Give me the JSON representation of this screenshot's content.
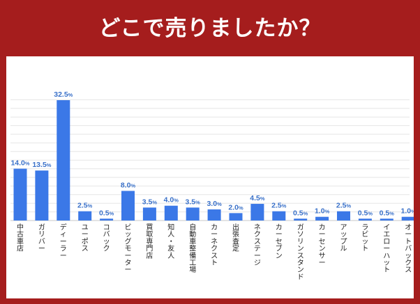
{
  "title": "どこで売りましたか？",
  "chart_data": {
    "type": "bar",
    "title": "どこで売りましたか？",
    "xlabel": "",
    "ylabel": "",
    "ylim": [
      0,
      35
    ],
    "unit": "%",
    "grid": true,
    "legend": "none",
    "bar_color": "#3b78e7",
    "label_color": "#3a71c9",
    "categories": [
      "中古車店",
      "ガリバー",
      "ディーラー",
      "ユーポス",
      "コバック",
      "ビッグモーター",
      "買取専門店",
      "知人・友人",
      "自動車整備工場",
      "カーネクスト",
      "出張査定",
      "ネクステージ",
      "カーセブン",
      "ガソリンスタンド",
      "カーセンサー",
      "アップル",
      "ラビット",
      "イエローハット",
      "オートバックス"
    ],
    "values": [
      14.0,
      13.5,
      32.5,
      2.5,
      0.5,
      8.0,
      3.5,
      4.0,
      3.5,
      3.0,
      2.0,
      4.5,
      2.5,
      0.5,
      1.0,
      2.5,
      0.5,
      0.5,
      1.0
    ],
    "value_labels": [
      "14.0%",
      "13.5%",
      "32.5%",
      "2.5%",
      "0.5%",
      "8.0%",
      "3.5%",
      "4.0%",
      "3.5%",
      "3.0%",
      "2.0%",
      "4.5%",
      "2.5%",
      "0.5%",
      "1.0%",
      "2.5%",
      "0.5%",
      "0.5%",
      "1.0%"
    ]
  }
}
